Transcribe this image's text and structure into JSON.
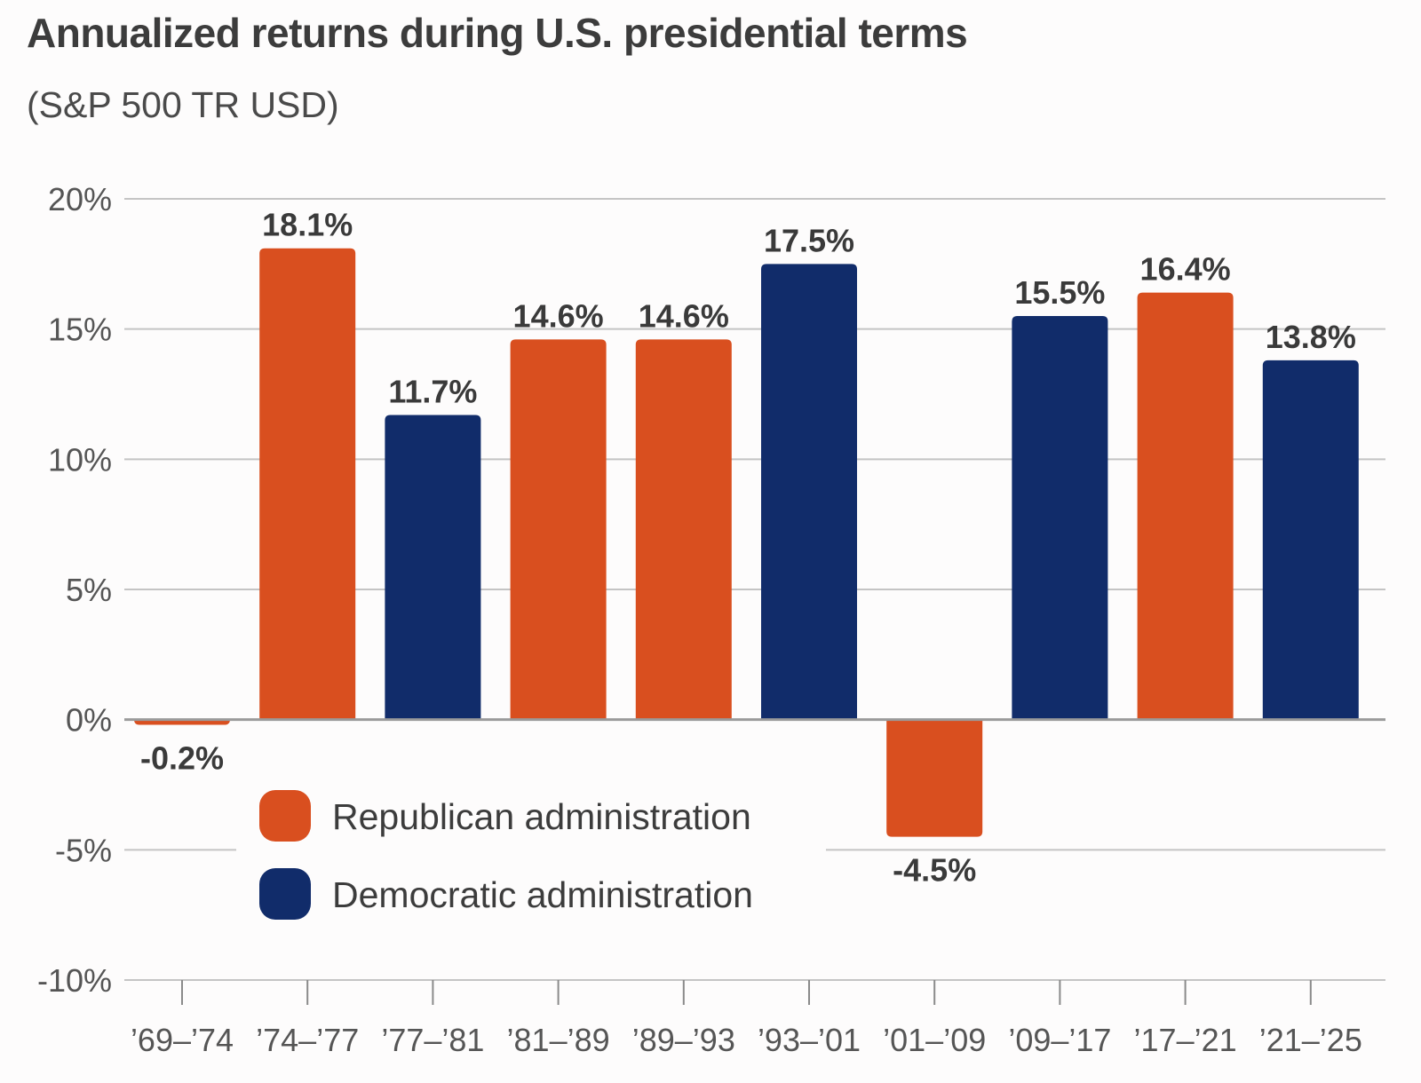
{
  "title": "Annualized returns during U.S. presidential terms",
  "subtitle": "(S&P 500 TR USD)",
  "colors": {
    "republican": "#d94f1f",
    "democratic": "#112c6a",
    "grid": "#c4c4c4",
    "zero_line": "#9a9a9a",
    "axis_text": "#555555"
  },
  "chart_data": {
    "type": "bar",
    "title": "Annualized returns during U.S. presidential terms",
    "subtitle": "(S&P 500 TR USD)",
    "categories": [
      "’69–’74",
      "’74–’77",
      "’77–’81",
      "’81–’89",
      "’89–’93",
      "’93–’01",
      "’01–’09",
      "’09–’17",
      "’17–’21",
      "’21–’25"
    ],
    "values": [
      -0.2,
      18.1,
      11.7,
      14.6,
      14.6,
      17.5,
      -4.5,
      15.5,
      16.4,
      13.8
    ],
    "value_labels": [
      "-0.2%",
      "18.1%",
      "11.7%",
      "14.6%",
      "14.6%",
      "17.5%",
      "-4.5%",
      "15.5%",
      "16.4%",
      "13.8%"
    ],
    "party": [
      "republican",
      "republican",
      "democratic",
      "republican",
      "republican",
      "democratic",
      "republican",
      "democratic",
      "republican",
      "democratic"
    ],
    "ylim": [
      -10,
      20
    ],
    "yticks": [
      20,
      15,
      10,
      5,
      0,
      -5,
      -10
    ],
    "ytick_labels": [
      "20%",
      "15%",
      "10%",
      "5%",
      "0%",
      "-5%",
      "-10%"
    ],
    "grid": true,
    "legend": {
      "placement": "bottom-left",
      "entries": [
        {
          "key": "republican",
          "label": "Republican administration"
        },
        {
          "key": "democratic",
          "label": "Democratic administration"
        }
      ]
    }
  }
}
